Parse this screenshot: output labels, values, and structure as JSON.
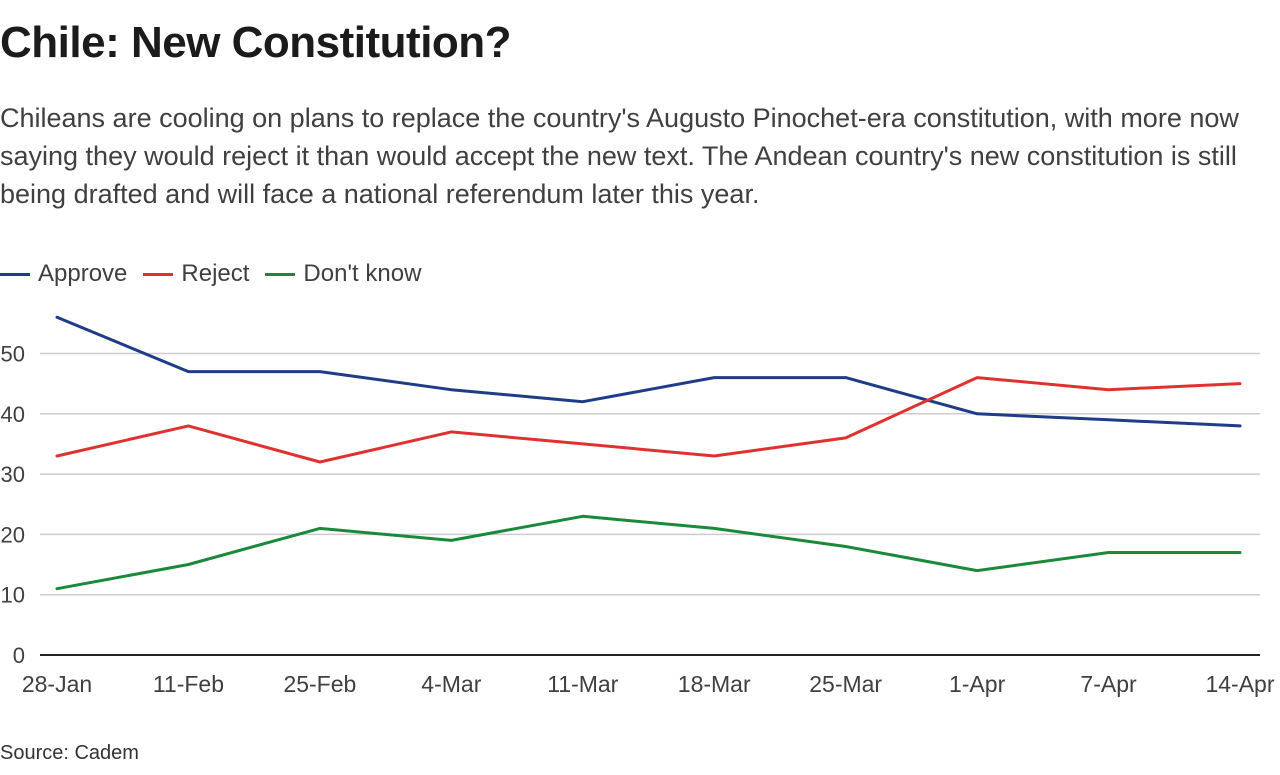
{
  "title": "Chile: New Constitution?",
  "subtitle": "Chileans are cooling on plans to replace the country's Augusto Pinochet-era constitution, with more now saying they would reject it than would accept the new text. The Andean country's new constitution is still being drafted and will face a national referendum later this year.",
  "source": "Source: Cadem",
  "colors": {
    "approve": "#1f3c88",
    "reject": "#e03131",
    "dont_know": "#1a8a3a",
    "grid": "#cccccc",
    "axis": "#222222"
  },
  "chart_data": {
    "type": "line",
    "categories": [
      "28-Jan",
      "11-Feb",
      "25-Feb",
      "4-Mar",
      "11-Mar",
      "18-Mar",
      "25-Mar",
      "1-Apr",
      "7-Apr",
      "14-Apr"
    ],
    "series": [
      {
        "key": "approve",
        "name": "Approve",
        "values": [
          56,
          47,
          47,
          44,
          42,
          46,
          46,
          40,
          39,
          38
        ]
      },
      {
        "key": "reject",
        "name": "Reject",
        "values": [
          33,
          38,
          32,
          37,
          35,
          33,
          36,
          46,
          44,
          45
        ]
      },
      {
        "key": "dont_know",
        "name": "Don't know",
        "values": [
          11,
          15,
          21,
          19,
          23,
          21,
          18,
          14,
          17,
          17
        ]
      }
    ],
    "yticks": [
      0,
      10,
      20,
      30,
      40,
      50
    ],
    "ylim": [
      0,
      56
    ],
    "xlabel": "",
    "ylabel": "",
    "grid": true,
    "legend": "top-left"
  }
}
